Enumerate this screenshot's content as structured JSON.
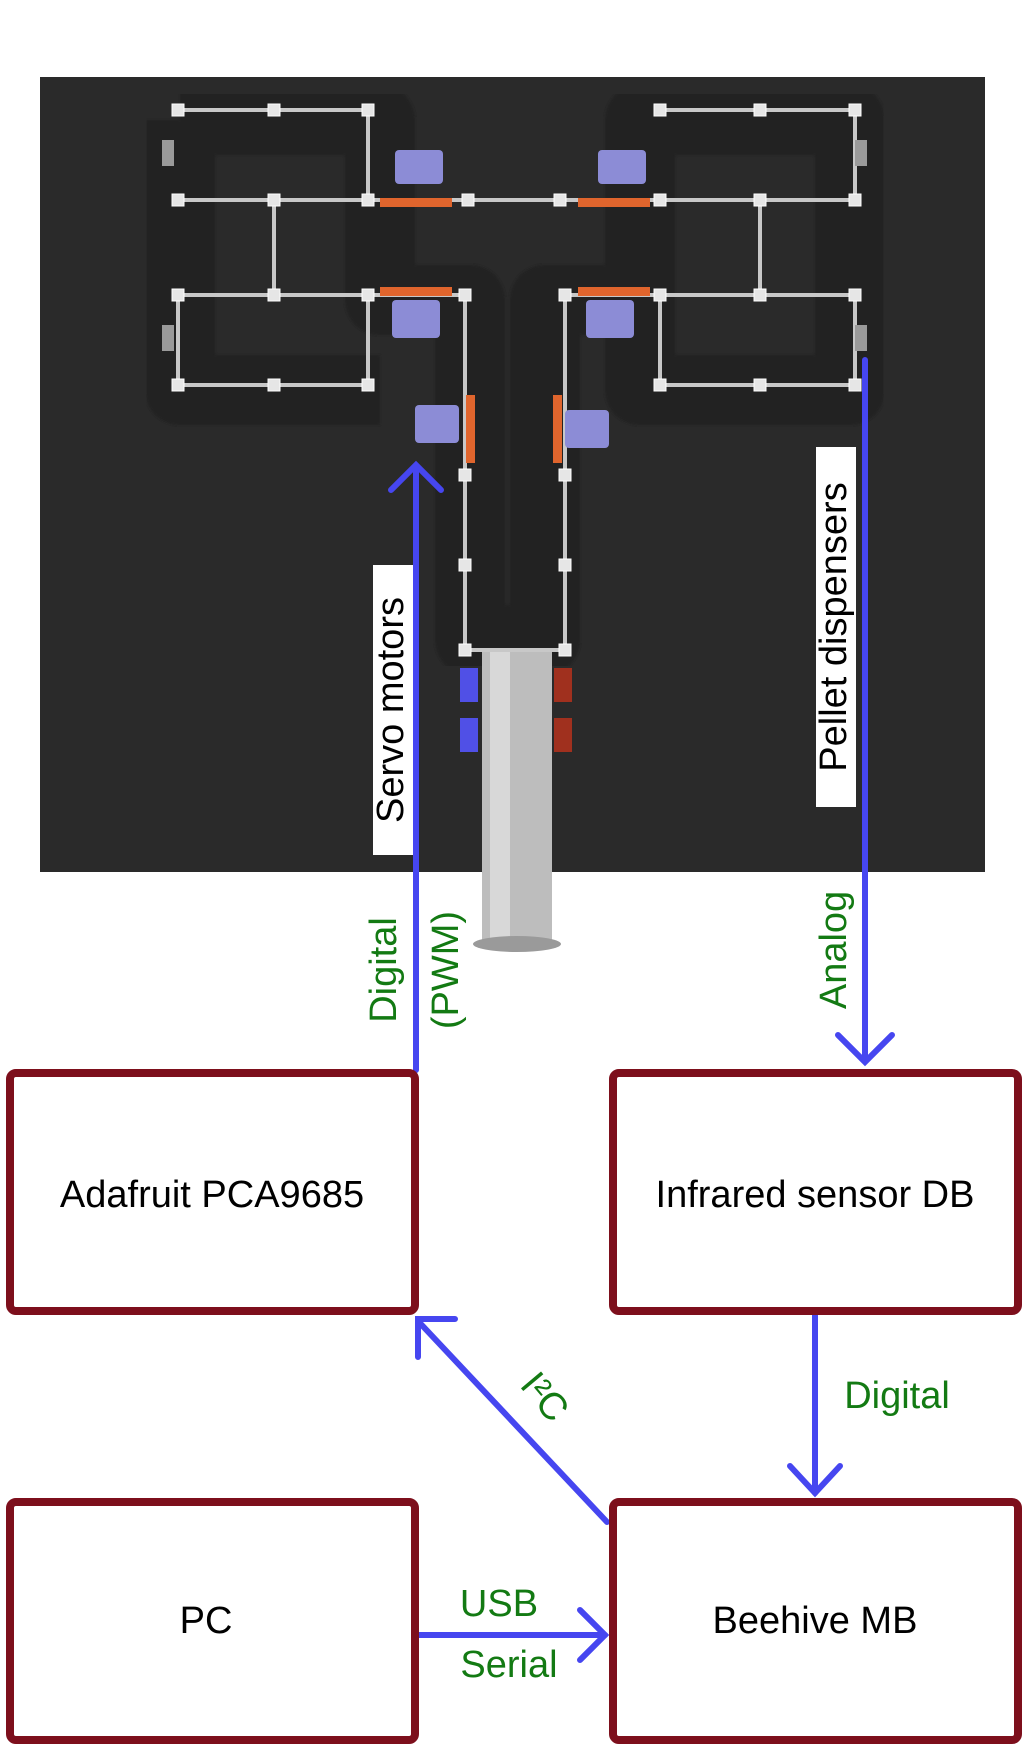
{
  "colors": {
    "arena": "#2a2a2a",
    "maze_line": "#c8c8c8",
    "box_border": "#7d0f1c",
    "arrow": "#4646f0",
    "connection_text": "#137a13",
    "servo": "#8c8cd6",
    "feeder": "#e0652d",
    "tube": "#bdbdbd",
    "led_blue": "#5050e6",
    "led_red": "#a0301e"
  },
  "boxes": {
    "adafruit": "Adafruit PCA9685",
    "infrared": "Infrared sensor DB",
    "pc": "PC",
    "beehive": "Beehive MB"
  },
  "device_labels": {
    "servo": "Servo motors",
    "pellet": "Pellet dispensers"
  },
  "connections": {
    "digital_pwm_line1": "Digital",
    "digital_pwm_line2": "(PWM)",
    "analog": "Analog",
    "i2c": "I²C",
    "digital": "Digital",
    "usb_line1": "USB",
    "usb_line2": "Serial"
  }
}
